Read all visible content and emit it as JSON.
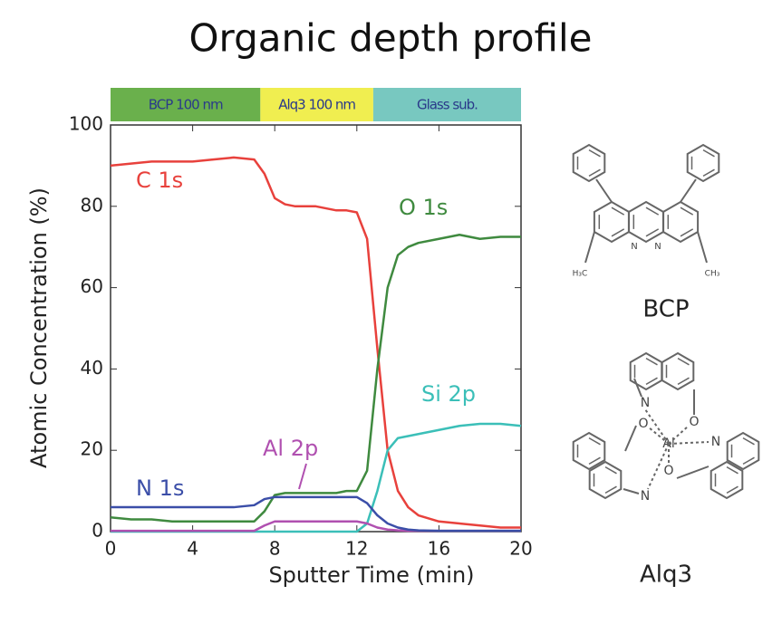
{
  "chart_data": {
    "type": "line",
    "title": "Organic depth profile",
    "x_label": "Sputter Time (min)",
    "y_label": "Atomic Concentration (%)",
    "x": [
      0,
      1,
      2,
      3,
      4,
      5,
      6,
      7,
      7.5,
      8,
      8.5,
      9,
      10,
      11,
      11.5,
      12,
      12.5,
      13,
      13.5,
      14,
      14.5,
      15,
      16,
      17,
      18,
      19,
      20
    ],
    "series": [
      {
        "name": "C 1s",
        "color": "#e8413c",
        "values": [
          90,
          90.5,
          91,
          91,
          91,
          91.5,
          92,
          91.5,
          88,
          82,
          80.5,
          80,
          80,
          79,
          79,
          78.5,
          72,
          45,
          20,
          10,
          6,
          4,
          2.5,
          2,
          1.5,
          1,
          1
        ]
      },
      {
        "name": "O 1s",
        "color": "#3f8a3f",
        "values": [
          3.5,
          3,
          3,
          2.5,
          2.5,
          2.5,
          2.5,
          2.5,
          5,
          9,
          9.5,
          9.5,
          9.5,
          9.5,
          10,
          10,
          15,
          40,
          60,
          68,
          70,
          71,
          72,
          73,
          72,
          72.5,
          72.5
        ]
      },
      {
        "name": "Si 2p",
        "color": "#3bbfb8",
        "values": [
          0,
          0,
          0,
          0,
          0,
          0,
          0,
          0,
          0,
          0,
          0,
          0,
          0,
          0,
          0,
          0,
          2,
          10,
          20,
          23,
          23.5,
          24,
          25,
          26,
          26.5,
          26.5,
          26
        ]
      },
      {
        "name": "Al 2p",
        "color": "#b050b0",
        "values": [
          0.2,
          0.2,
          0.2,
          0.2,
          0.2,
          0.2,
          0.2,
          0.2,
          1.5,
          2.5,
          2.5,
          2.5,
          2.5,
          2.5,
          2.5,
          2.5,
          2,
          1,
          0.5,
          0.3,
          0.2,
          0.2,
          0.2,
          0.2,
          0.2,
          0.2,
          0.2
        ]
      },
      {
        "name": "N 1s",
        "color": "#3b4ea8",
        "values": [
          6,
          6,
          6,
          6,
          6,
          6,
          6,
          6.5,
          8,
          8.5,
          8.5,
          8.5,
          8.5,
          8.5,
          8.5,
          8.5,
          7,
          4,
          2,
          1,
          0.5,
          0.3,
          0.2,
          0.2,
          0.2,
          0.2,
          0.2
        ]
      }
    ],
    "xlim": [
      0,
      20
    ],
    "xticks": [
      0,
      4,
      8,
      12,
      16,
      20
    ],
    "ylim": [
      0,
      100
    ],
    "yticks": [
      0,
      20,
      40,
      60,
      80,
      100
    ],
    "layers": [
      {
        "label": "BCP 100 nm",
        "start": 0,
        "end": 7.3,
        "color": "#6ab04c"
      },
      {
        "label": "Alq3 100 nm",
        "start": 7.3,
        "end": 12.8,
        "color": "#f0ee50"
      },
      {
        "label": "Glass sub.",
        "start": 12.8,
        "end": 20,
        "color": "#78c8c0"
      }
    ],
    "molecules": [
      {
        "name": "BCP",
        "atoms": [
          "N",
          "N",
          "H₃C",
          "CH₃"
        ]
      },
      {
        "name": "Alq3",
        "atoms": [
          "N",
          "O",
          "Al",
          "O",
          "N",
          "O",
          "N"
        ]
      }
    ]
  }
}
